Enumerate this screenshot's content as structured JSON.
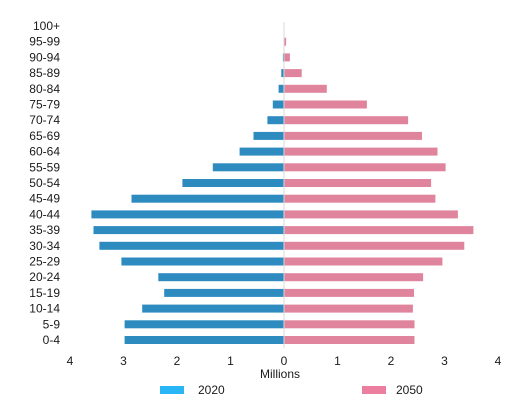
{
  "chart_data": {
    "type": "bar",
    "orientation": "horizontal",
    "layout": "population-pyramid",
    "categories": [
      "100+",
      "95-99",
      "90-94",
      "85-89",
      "80-84",
      "75-79",
      "70-74",
      "65-69",
      "60-64",
      "55-59",
      "50-54",
      "45-49",
      "40-44",
      "35-39",
      "30-34",
      "25-29",
      "20-24",
      "15-19",
      "10-14",
      "5-9",
      "0-4"
    ],
    "series": [
      {
        "name": "2020",
        "side": "left",
        "color": "#2E8BC0",
        "legend_color": "#29B6F6",
        "values": [
          0.0,
          0.0,
          0.02,
          0.05,
          0.1,
          0.21,
          0.31,
          0.57,
          0.83,
          1.33,
          1.9,
          2.85,
          3.6,
          3.56,
          3.45,
          3.04,
          2.35,
          2.24,
          2.65,
          2.98,
          2.98
        ]
      },
      {
        "name": "2050",
        "side": "right",
        "color": "#E0849E",
        "legend_color": "#EC7FA0",
        "values": [
          0.0,
          0.04,
          0.11,
          0.33,
          0.8,
          1.55,
          2.32,
          2.58,
          2.87,
          3.02,
          2.75,
          2.83,
          3.25,
          3.54,
          3.37,
          2.96,
          2.6,
          2.43,
          2.41,
          2.44,
          2.44
        ]
      }
    ],
    "xaxis": {
      "ticks": [
        "4",
        "3",
        "2",
        "1",
        "0",
        "1",
        "2",
        "3",
        "4"
      ],
      "tick_values": [
        -4,
        -3,
        -2,
        -1,
        0,
        1,
        2,
        3,
        4
      ],
      "label": "Millions",
      "range": [
        -4,
        4
      ]
    },
    "grid": false,
    "legend_position": "bottom"
  }
}
